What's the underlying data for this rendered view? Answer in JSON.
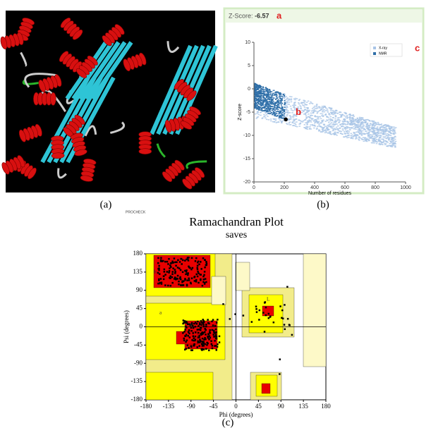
{
  "panels": {
    "a": {
      "caption": "(a)"
    },
    "b": {
      "caption": "(b)",
      "header": "Z-Score:",
      "zscore": -6.57,
      "residues": 210,
      "letters": [
        "a",
        "b",
        "c"
      ],
      "legend": [
        "X-ray",
        "NMR"
      ],
      "y_label": "Z-score",
      "x_label": "Number of residues",
      "xlim": [
        0,
        1000
      ],
      "ylim": [
        -20,
        10
      ],
      "xticks": [
        0,
        200,
        400,
        600,
        800,
        1000
      ],
      "yticks": [
        10,
        5,
        0,
        -5,
        -10,
        -15,
        -20
      ]
    },
    "c": {
      "caption": "(c)",
      "program": "PROCHECK",
      "title": "Ramachandran Plot",
      "subtitle": "saves",
      "x_label": "Phi (degrees)",
      "y_label": "Psi (degrees)",
      "xlim": [
        -180,
        180
      ],
      "ylim": [
        -180,
        180
      ],
      "xticks": [
        -180,
        -135,
        -90,
        -45,
        0,
        45,
        90,
        135,
        180
      ],
      "yticks": [
        180,
        135,
        90,
        45,
        0,
        -45,
        -90,
        -135,
        -180
      ],
      "region_labels": [
        "b",
        "a",
        "A",
        "L"
      ]
    }
  }
}
